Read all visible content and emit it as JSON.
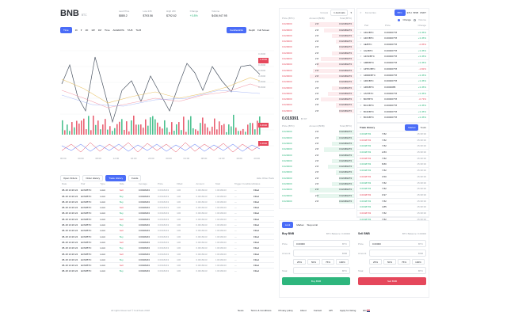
{
  "header": {
    "symbol": "BNB",
    "pair": "BTC",
    "stats": [
      {
        "label": "Last Price",
        "value": "$885.2"
      },
      {
        "label": "Low 24h",
        "value": "$793.56"
      },
      {
        "label": "High 24h",
        "value": "$792.62"
      },
      {
        "label": "Change",
        "value": "+0.8%"
      },
      {
        "label": "Volume",
        "value": "$436,947.95"
      }
    ]
  },
  "chart_toolbar": {
    "intervals": [
      "Time",
      "1h",
      "1D",
      "1W",
      "1M",
      "Time",
      "AGGDATA",
      "TA-B",
      "TA-B"
    ],
    "right_tabs": [
      "Candlesticks",
      "Depth",
      "Full Screen"
    ]
  },
  "price_tags": [
    "0.4940",
    "0.4940",
    "0.4940",
    "0.4940",
    "0.4940",
    "0.4940",
    "0.4940"
  ],
  "price_tag_colors": [
    "#e5475b",
    "#4a6cf7",
    "#2eb67d"
  ],
  "volume_tags": [
    "0.4940",
    "0.4940"
  ],
  "x_ticks": [
    "00:00",
    "04:00",
    "08:00",
    "12:00",
    "16:00",
    "20:00",
    "00:00",
    "04:00",
    "08:00",
    "12:00",
    "16:00",
    "20:00"
  ],
  "orders_tabs": [
    "Open Orders",
    "Order History",
    "Trade History",
    "Funds"
  ],
  "orders_active_tab": 2,
  "hide_other": "Hide Other Pairs",
  "orders_columns": [
    "Date",
    "Pair",
    "Type",
    "Side",
    "Average",
    "Price",
    "Filled",
    "Amount",
    "Total",
    "Trigger Conditions",
    "Status"
  ],
  "orders_rows": [
    [
      "08-18 13:26:24",
      "EOS/BTC",
      "Limit",
      "Sell",
      "0.0018243",
      "0.0018243",
      "100",
      "0.0018243",
      "0.0018243",
      "—",
      "Filled"
    ],
    [
      "08-18 13:26:24",
      "EOS/BTC",
      "Limit",
      "Buy",
      "0.0018243",
      "0.0018243",
      "100",
      "0.0018243",
      "0.0018243",
      "—",
      "Filled"
    ],
    [
      "08-18 13:26:24",
      "EOS/BTC",
      "Limit",
      "Buy",
      "0.0018243",
      "0.0018243",
      "100",
      "0.0018243",
      "0.0018243",
      "—",
      "Filled"
    ],
    [
      "08-18 13:26:24",
      "EOS/BTC",
      "Limit",
      "Sell",
      "0.0018243",
      "0.0018243",
      "100",
      "0.0018243",
      "0.0018243",
      "—",
      "Filled"
    ],
    [
      "08-18 13:26:24",
      "EOS/BTC",
      "Limit",
      "Buy",
      "0.0018243",
      "0.0018243",
      "100",
      "0.0018243",
      "0.0018243",
      "—",
      "Filled"
    ],
    [
      "08-18 13:26:24",
      "EOS/BTC",
      "Limit",
      "Sell",
      "0.0018243",
      "0.0018243",
      "100",
      "0.0018243",
      "0.0018243",
      "—",
      "Filled"
    ],
    [
      "08-18 13:26:24",
      "EOS/BTC",
      "Limit",
      "Buy",
      "0.0018243",
      "0.0018243",
      "100",
      "0.0018243",
      "0.0018243",
      "—",
      "Filled"
    ],
    [
      "08-18 13:26:24",
      "EOS/BTC",
      "Limit",
      "Sell",
      "0.0018243",
      "0.0018243",
      "100",
      "0.0018243",
      "0.0018243",
      "—",
      "Filled"
    ],
    [
      "08-18 13:26:24",
      "EOS/BTC",
      "Limit",
      "Buy",
      "0.0018243",
      "0.0018243",
      "100",
      "0.0018243",
      "0.0018243",
      "—",
      "Filled"
    ],
    [
      "08-18 13:26:24",
      "EOS/BTC",
      "Limit",
      "Sell",
      "0.0018243",
      "0.0018243",
      "100",
      "0.0018243",
      "0.0018243",
      "—",
      "Filled"
    ],
    [
      "08-18 13:26:24",
      "EOS/BTC",
      "Limit",
      "Buy",
      "0.0018243",
      "0.0018243",
      "100",
      "0.0018243",
      "0.0018243",
      "—",
      "Filled"
    ],
    [
      "08-18 13:26:24",
      "EOS/BTC",
      "Limit",
      "Sell",
      "0.0018243",
      "0.0018243",
      "100",
      "0.0018243",
      "0.0018243",
      "—",
      "Filled"
    ],
    [
      "08-18 13:26:24",
      "EOS/BTC",
      "Limit",
      "Buy",
      "0.0018243",
      "0.0018243",
      "100",
      "0.0018243",
      "0.0018243",
      "—",
      "Filled"
    ],
    [
      "08-18 13:26:24",
      "EOS/BTC",
      "Limit",
      "Sell",
      "0.0018243",
      "0.0018243",
      "100",
      "0.0018243",
      "0.0018243",
      "—",
      "Filled"
    ],
    [
      "08-18 13:26:24",
      "EOS/BTC",
      "Limit",
      "Buy",
      "0.0018243",
      "0.0018243",
      "100",
      "0.0018243",
      "0.0018243",
      "—",
      "Filled"
    ]
  ],
  "orderbook": {
    "group_label": "Groups",
    "group_value": "1 decimals",
    "columns": [
      "Price (BTC)",
      "Amount (BNB)",
      "Total (BTC)"
    ],
    "asks": [
      [
        "0.020000",
        "2.8",
        "0.02469273"
      ],
      [
        "0.020000",
        "2.8",
        "0.02469273"
      ],
      [
        "0.020000",
        "2.8",
        "0.02469273"
      ],
      [
        "0.020000",
        "2.8",
        "0.02469273"
      ],
      [
        "0.020000",
        "2.8",
        "0.02469273"
      ],
      [
        "0.020000",
        "2.8",
        "0.02469273"
      ],
      [
        "0.020000",
        "2.8",
        "0.02469273"
      ],
      [
        "0.020000",
        "2.8",
        "0.02469273"
      ],
      [
        "0.020000",
        "2.8",
        "0.02469273"
      ],
      [
        "0.020000",
        "2.8",
        "0.02469273"
      ],
      [
        "0.020000",
        "2.8",
        "0.02469273"
      ],
      [
        "0.020000",
        "2.8",
        "0.02469273"
      ],
      [
        "0.020000",
        "2.8",
        "0.02469273"
      ],
      [
        "0.020000",
        "2.8",
        "0.02469273"
      ],
      [
        "0.020000",
        "2.8",
        "0.02469273"
      ],
      [
        "0.020000",
        "2.8",
        "0.02469273"
      ]
    ],
    "ask_depth": [
      0.6,
      0.4,
      0.3,
      0.25,
      0.2,
      0.3,
      0.45,
      0.5,
      0.55,
      0.6,
      0.2,
      0.3,
      0.35,
      0.45,
      0.25,
      0.2
    ],
    "mid_price": "0.019391",
    "mid_sub": "$7.97",
    "columns2": [
      "Price (BTC)",
      "Amount (BNB)",
      "Total (BTC)"
    ],
    "bids": [
      [
        "0.020000",
        "2.8",
        "0.02469273"
      ],
      [
        "0.020000",
        "2.8",
        "0.02469273"
      ],
      [
        "0.020000",
        "2.8",
        "0.02469273"
      ],
      [
        "0.020000",
        "2.8",
        "0.02469273"
      ],
      [
        "0.020000",
        "2.8",
        "0.02469273"
      ],
      [
        "0.020000",
        "2.8",
        "0.02469273"
      ],
      [
        "0.020000",
        "2.8",
        "0.02469273"
      ],
      [
        "0.020000",
        "2.8",
        "0.02469273"
      ],
      [
        "0.020000",
        "2.8",
        "0.02469273"
      ],
      [
        "0.020000",
        "2.8",
        "0.02469273"
      ],
      [
        "0.020000",
        "2.8",
        "0.02469273"
      ],
      [
        "0.020000",
        "2.8",
        "0.02469273"
      ],
      [
        "0.020000",
        "2.8",
        "0.02469273"
      ]
    ],
    "bid_depth": [
      0.2,
      0.25,
      0.3,
      0.4,
      0.2,
      0.3,
      0.35,
      0.25,
      0.2,
      0.3,
      0.6,
      0.5,
      0.2
    ]
  },
  "pairs": {
    "search_placeholder": "Favourites",
    "markets": [
      "BTC",
      "ETH",
      "BNB",
      "USDT"
    ],
    "active_market": 0,
    "change_label": "Change",
    "volume_label": "Volume",
    "columns": [
      "Pair",
      "Price",
      "Change"
    ],
    "rows": [
      [
        "ADA/BTC",
        "0.00000778",
        "+3.45%"
      ],
      [
        "ADX/BTC",
        "0.00000778",
        "+3.45%"
      ],
      [
        "AE/BTC",
        "0.00000778",
        "-2.05%"
      ],
      [
        "AGI/BTC",
        "0.00000778",
        "+3.45%"
      ],
      [
        "AION/BTC",
        "0.00000778",
        "+3.45%"
      ],
      [
        "AMB/BTC",
        "0.00000778",
        "+3.45%"
      ],
      [
        "APPC/BTC",
        "0.00000778",
        "-1.82%"
      ],
      [
        "ARDR/BTC",
        "0.00000778",
        "+3.45%"
      ],
      [
        "ARK/BTC",
        "0.00000778",
        "+3.45%"
      ],
      [
        "ARN/BTC",
        "0.0000085",
        "+3.45%"
      ],
      [
        "AST/BTC",
        "0.00000778",
        "+3.45%"
      ],
      [
        "BAT/BTC",
        "0.00000778",
        "-0.73%"
      ],
      [
        "BCC/BTC",
        "0.00000778",
        "+3.45%"
      ],
      [
        "BCD/BTC",
        "0.00000778",
        "+3.45%"
      ],
      [
        "BCN/BTC",
        "0.00000778",
        "+3.45%"
      ]
    ],
    "row_change_colors": [
      "green",
      "green",
      "red",
      "green",
      "green",
      "green",
      "red",
      "green",
      "green",
      "green",
      "green",
      "red",
      "green",
      "green",
      "green"
    ]
  },
  "trade_history": {
    "title": "Trade History",
    "tabs": [
      "Market",
      "Yours"
    ],
    "rows": [
      [
        "0.0048793",
        "7.82",
        "15:38:36"
      ],
      [
        "0.0048793",
        "7.82",
        "15:38:36"
      ],
      [
        "0.0048793",
        "7.82",
        "15:38:36"
      ],
      [
        "0.0048793",
        "2.83",
        "15:38:36"
      ],
      [
        "0.0048793",
        "7.82",
        "15:38:36"
      ],
      [
        "0.0048793",
        "8.80",
        "15:38:36"
      ],
      [
        "0.0048793",
        "7.82",
        "15:38:36"
      ],
      [
        "0.0048793",
        "3.50",
        "15:38:36"
      ],
      [
        "0.0048793",
        "7.82",
        "15:38:36"
      ],
      [
        "0.0048793",
        "7.82",
        "15:38:36"
      ],
      [
        "0.0048793",
        "0.97",
        "15:38:36"
      ],
      [
        "0.0048793",
        "7.82",
        "15:38:36"
      ],
      [
        "0.0048793",
        "4.85",
        "15:38:36"
      ],
      [
        "0.0048793",
        "7.82",
        "15:38:36"
      ],
      [
        "0.0048793",
        "7.82",
        "15:38:36"
      ]
    ],
    "row_colors": [
      "green",
      "red",
      "green",
      "green",
      "red",
      "green",
      "green",
      "red",
      "green",
      "green",
      "red",
      "green",
      "green",
      "red",
      "green"
    ]
  },
  "trade_form": {
    "tabs": [
      "Limit",
      "Market",
      "Stop-Limit"
    ],
    "buy": {
      "title": "Buy BNB",
      "balance": "BTC Balance: 0.00000",
      "price_label": "Price",
      "price_value": "0.00000",
      "price_unit": "BTC",
      "amount_label": "Amount",
      "amount_unit": "BNB",
      "percents": [
        "25%",
        "50%",
        "75%",
        "100%"
      ],
      "total_label": "Total",
      "total_unit": "BTC",
      "button": "Buy BNB"
    },
    "sell": {
      "title": "Sell BNB",
      "balance": "BTC Balance: 0.00000",
      "price_label": "Price",
      "price_value": "0.00000",
      "price_unit": "BTC",
      "amount_label": "Amount",
      "amount_unit": "BNB",
      "percents": [
        "25%",
        "50%",
        "75%",
        "100%"
      ],
      "total_label": "Total",
      "total_unit": "BTC",
      "button": "Sell BNB"
    }
  },
  "footer": {
    "copyright": "All rights Reserved © CoinSafe 2018",
    "links": [
      "News",
      "Terms & Conditions",
      "Privacy policy",
      "About",
      "Contact",
      "API",
      "Apply for listing"
    ],
    "lang": "EN"
  },
  "colors": {
    "accent": "#4a6cf7",
    "green": "#2eb67d",
    "red": "#e5475b",
    "yellow": "#e9c46a"
  }
}
